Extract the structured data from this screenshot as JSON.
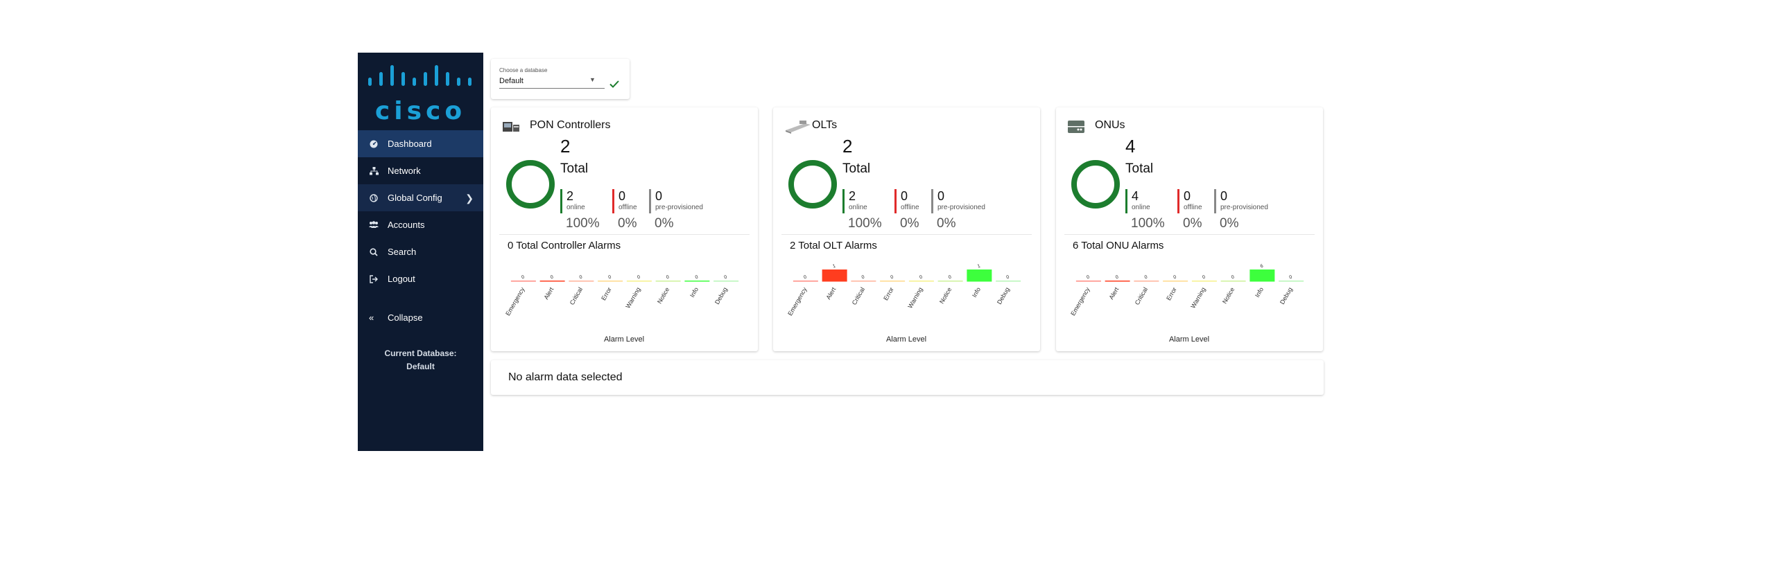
{
  "sidebar": {
    "logo_text": "cisco",
    "items": [
      {
        "label": "Dashboard",
        "icon": "dashboard-icon",
        "active": true
      },
      {
        "label": "Network",
        "icon": "network-icon"
      },
      {
        "label": "Global Config",
        "icon": "globe-icon",
        "expandable": true
      },
      {
        "label": "Accounts",
        "icon": "users-icon"
      },
      {
        "label": "Search",
        "icon": "search-icon"
      },
      {
        "label": "Logout",
        "icon": "logout-icon"
      }
    ],
    "collapse_label": "Collapse",
    "current_db_label": "Current Database:",
    "current_db_value": "Default",
    "colors": {
      "background": "#0d1a30",
      "active": "#1c3a66",
      "logo": "#1ba0d7"
    }
  },
  "database": {
    "label": "Choose a database",
    "value": "Default"
  },
  "cards": [
    {
      "title": "PON Controllers",
      "icon": "controller-icon",
      "total": "2",
      "total_label": "Total",
      "online": "2",
      "online_label": "online",
      "online_pct": "100%",
      "offline": "0",
      "offline_label": "offline",
      "offline_pct": "0%",
      "preprov": "0",
      "preprov_label": "pre-provisioned",
      "preprov_pct": "0%",
      "alarms_title": "0 Total Controller Alarms",
      "chart_data": {
        "type": "bar",
        "categories": [
          "Emergency",
          "Alert",
          "Critical",
          "Error",
          "Warning",
          "Notice",
          "Info",
          "Debug"
        ],
        "values": [
          0,
          0,
          0,
          0,
          0,
          0,
          0,
          0
        ],
        "xlabel": "Alarm Level"
      }
    },
    {
      "title": "OLTs",
      "icon": "olt-icon",
      "total": "2",
      "total_label": "Total",
      "online": "2",
      "online_label": "online",
      "online_pct": "100%",
      "offline": "0",
      "offline_label": "offline",
      "offline_pct": "0%",
      "preprov": "0",
      "preprov_label": "pre-provisioned",
      "preprov_pct": "0%",
      "alarms_title": "2 Total OLT Alarms",
      "chart_data": {
        "type": "bar",
        "categories": [
          "Emergency",
          "Alert",
          "Critical",
          "Error",
          "Warning",
          "Notice",
          "Info",
          "Debug"
        ],
        "values": [
          0,
          1,
          0,
          0,
          0,
          0,
          1,
          0
        ],
        "xlabel": "Alarm Level"
      }
    },
    {
      "title": "ONUs",
      "icon": "onu-icon",
      "total": "4",
      "total_label": "Total",
      "online": "4",
      "online_label": "online",
      "online_pct": "100%",
      "offline": "0",
      "offline_label": "offline",
      "offline_pct": "0%",
      "preprov": "0",
      "preprov_label": "pre-provisioned",
      "preprov_pct": "0%",
      "alarms_title": "6 Total ONU Alarms",
      "chart_data": {
        "type": "bar",
        "categories": [
          "Emergency",
          "Alert",
          "Critical",
          "Error",
          "Warning",
          "Notice",
          "Info",
          "Debug"
        ],
        "values": [
          0,
          0,
          0,
          0,
          0,
          0,
          6,
          0
        ],
        "xlabel": "Alarm Level"
      }
    }
  ],
  "level_colors": [
    "#ff8a80",
    "#ff3d1f",
    "#ffb199",
    "#ffd98a",
    "#f6f08a",
    "#cdf29a",
    "#3dff3d",
    "#b6f5b6"
  ],
  "status_colors": {
    "online": "#1c7d2e",
    "offline": "#e02a2a",
    "preprov": "#888888"
  },
  "no_alarm": "No alarm data selected"
}
